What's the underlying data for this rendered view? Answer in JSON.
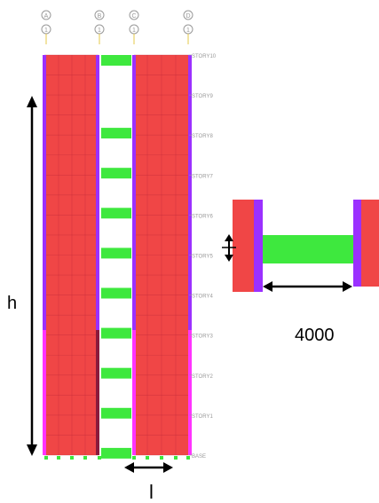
{
  "colors": {
    "wall": "#f04646",
    "wall_edge_left": "#8a1a3c",
    "column": "#9b30ff",
    "column_lower": "#ff33ff",
    "beam": "#3ee83e",
    "gridline": "#c22a3a",
    "axis": "#999999",
    "arrow": "#000000",
    "support": "#3ee83e"
  },
  "grid_axes": [
    {
      "label": "A",
      "sub": "1"
    },
    {
      "label": "B",
      "sub": "1"
    },
    {
      "label": "C",
      "sub": "1"
    },
    {
      "label": "D",
      "sub": "1"
    }
  ],
  "story_labels": [
    "STORY10",
    "STORY9",
    "STORY8",
    "STORY7",
    "STORY6",
    "STORY5",
    "STORY4",
    "STORY3",
    "STORY2",
    "STORY1",
    "BASE"
  ],
  "dimensions": {
    "height_label": "h",
    "span_label": "l",
    "beam_length": "4000"
  },
  "icons": [
    "double-arrow-icon"
  ]
}
